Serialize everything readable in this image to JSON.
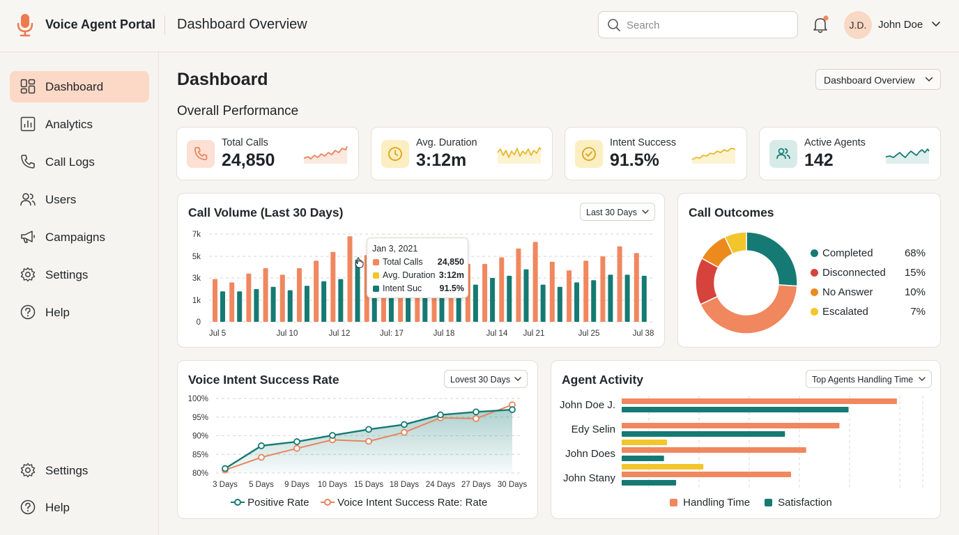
{
  "app": {
    "title": "Voice Agent Portal",
    "page_heading": "Dashboard Overview"
  },
  "search": {
    "placeholder": "Search",
    "icon": "search-icon"
  },
  "user": {
    "initials": "J.D.",
    "name": "John Doe"
  },
  "sidebar": {
    "items": [
      {
        "label": "Dashboard",
        "icon": "dashboard-icon",
        "active": true
      },
      {
        "label": "Analytics",
        "icon": "analytics-icon"
      },
      {
        "label": "Call Logs",
        "icon": "phone-icon"
      },
      {
        "label": "Users",
        "icon": "users-icon"
      },
      {
        "label": "Campaigns",
        "icon": "megaphone-icon"
      },
      {
        "label": "Settings",
        "icon": "gear-icon"
      },
      {
        "label": "Help",
        "icon": "help-icon"
      }
    ],
    "bottom_items": [
      {
        "label": "Settings",
        "icon": "gear-icon"
      },
      {
        "label": "Help",
        "icon": "help-icon"
      }
    ]
  },
  "main": {
    "title": "Dashboard",
    "view_select": "Dashboard Overview",
    "section_title": "Overall Performance"
  },
  "kpis": [
    {
      "label": "Total Calls",
      "value": "24,850",
      "icon": "phone-icon",
      "color": "#e8845c"
    },
    {
      "label": "Avg. Duration",
      "value": "3:12m",
      "icon": "clock-icon",
      "color": "#e8b72a"
    },
    {
      "label": "Intent Success",
      "value": "91.5%",
      "icon": "check-circle-icon",
      "color": "#e8b72a"
    },
    {
      "label": "Active Agents",
      "value": "142",
      "icon": "users-icon",
      "color": "#167a74"
    }
  ],
  "colors": {
    "orange": "#f0875f",
    "teal": "#157a73",
    "yellow": "#f2c52b",
    "red": "#d6433c",
    "amber": "#ec8a1e"
  },
  "chart_data": [
    {
      "type": "bar",
      "title": "Call Volume (Last 30 Days)",
      "range_select": "Last 30 Days",
      "y_ticks": [
        "0",
        "1k",
        "3k",
        "5k",
        "7k"
      ],
      "x_ticks": [
        "Jul 5",
        "Jul 10",
        "Jul 12",
        "Jul: 17",
        "Jul 18",
        "Jul 14",
        "Jul 21",
        "Jul 25",
        "Jul 38"
      ],
      "ylim": [
        0,
        7000
      ],
      "series": [
        {
          "values": [
            2900,
            2600,
            3400,
            3900,
            3300,
            3900,
            4600,
            5400,
            6800,
            5100,
            4200,
            3600,
            3300,
            3700,
            4800,
            4300,
            4300,
            4900,
            5700,
            6300,
            4500,
            3700,
            4600,
            5000,
            5900,
            5300
          ]
        },
        {
          "values": [
            1800,
            1800,
            2000,
            2200,
            1900,
            2300,
            2700,
            2900,
            4700,
            3200,
            2600,
            2300,
            2100,
            2200,
            2900,
            2400,
            3000,
            3200,
            3800,
            2400,
            2200,
            2600,
            2800,
            3300,
            3300,
            3200
          ]
        }
      ],
      "tooltip": {
        "date": "Jan 3, 2021",
        "rows": [
          {
            "name": "Total Calls",
            "value": "24,850"
          },
          {
            "name": "Avg. Duration",
            "value": "3:12m"
          },
          {
            "name": "Intent Suc",
            "value": "91.5%"
          }
        ]
      }
    },
    {
      "type": "pie",
      "title": "Call Outcomes",
      "slices": [
        {
          "name": "Completed",
          "label": "68%",
          "value": 68
        },
        {
          "name": "Disconnected",
          "label": "15%",
          "value": 15
        },
        {
          "name": "No Answer",
          "label": "10%",
          "value": 10
        },
        {
          "name": "Escalated",
          "label": "7%",
          "value": 7
        }
      ]
    },
    {
      "type": "line",
      "title": "Voice Intent Success Rate",
      "range_select": "Lovest 30 Days",
      "x": [
        "3 Days",
        "5 Days",
        "9 Days",
        "10 Days",
        "15 Days",
        "18 Days",
        "24 Days",
        "27 Days",
        "30 Days"
      ],
      "y_ticks": [
        "80%",
        "85%",
        "90%",
        "95%",
        "100%"
      ],
      "ylim": [
        80,
        100
      ],
      "series": [
        {
          "name": "Positive Rate",
          "values": [
            81.2,
            87.3,
            88.4,
            90.1,
            91.7,
            93.0,
            95.6,
            96.4,
            97.0
          ]
        },
        {
          "name": "Voice Intent Success Rate: Rate",
          "values": [
            80.8,
            84.2,
            86.6,
            88.9,
            88.5,
            90.9,
            94.8,
            94.6,
            98.3
          ]
        }
      ]
    },
    {
      "type": "bar",
      "orientation": "horizontal",
      "title": "Agent Activity",
      "range_select": "Top Agents Handling Time",
      "categories": [
        "John Doe J.",
        "Edy Selin",
        "John Does",
        "John Stany"
      ],
      "xlim": [
        0,
        100
      ],
      "series": [
        {
          "name": "Handling Time",
          "values": [
            91,
            72,
            61,
            56
          ]
        },
        {
          "name": "Satisfaction",
          "values": [
            75,
            54,
            14,
            18
          ]
        },
        {
          "values": [
            0,
            15,
            27,
            0
          ]
        }
      ]
    }
  ]
}
